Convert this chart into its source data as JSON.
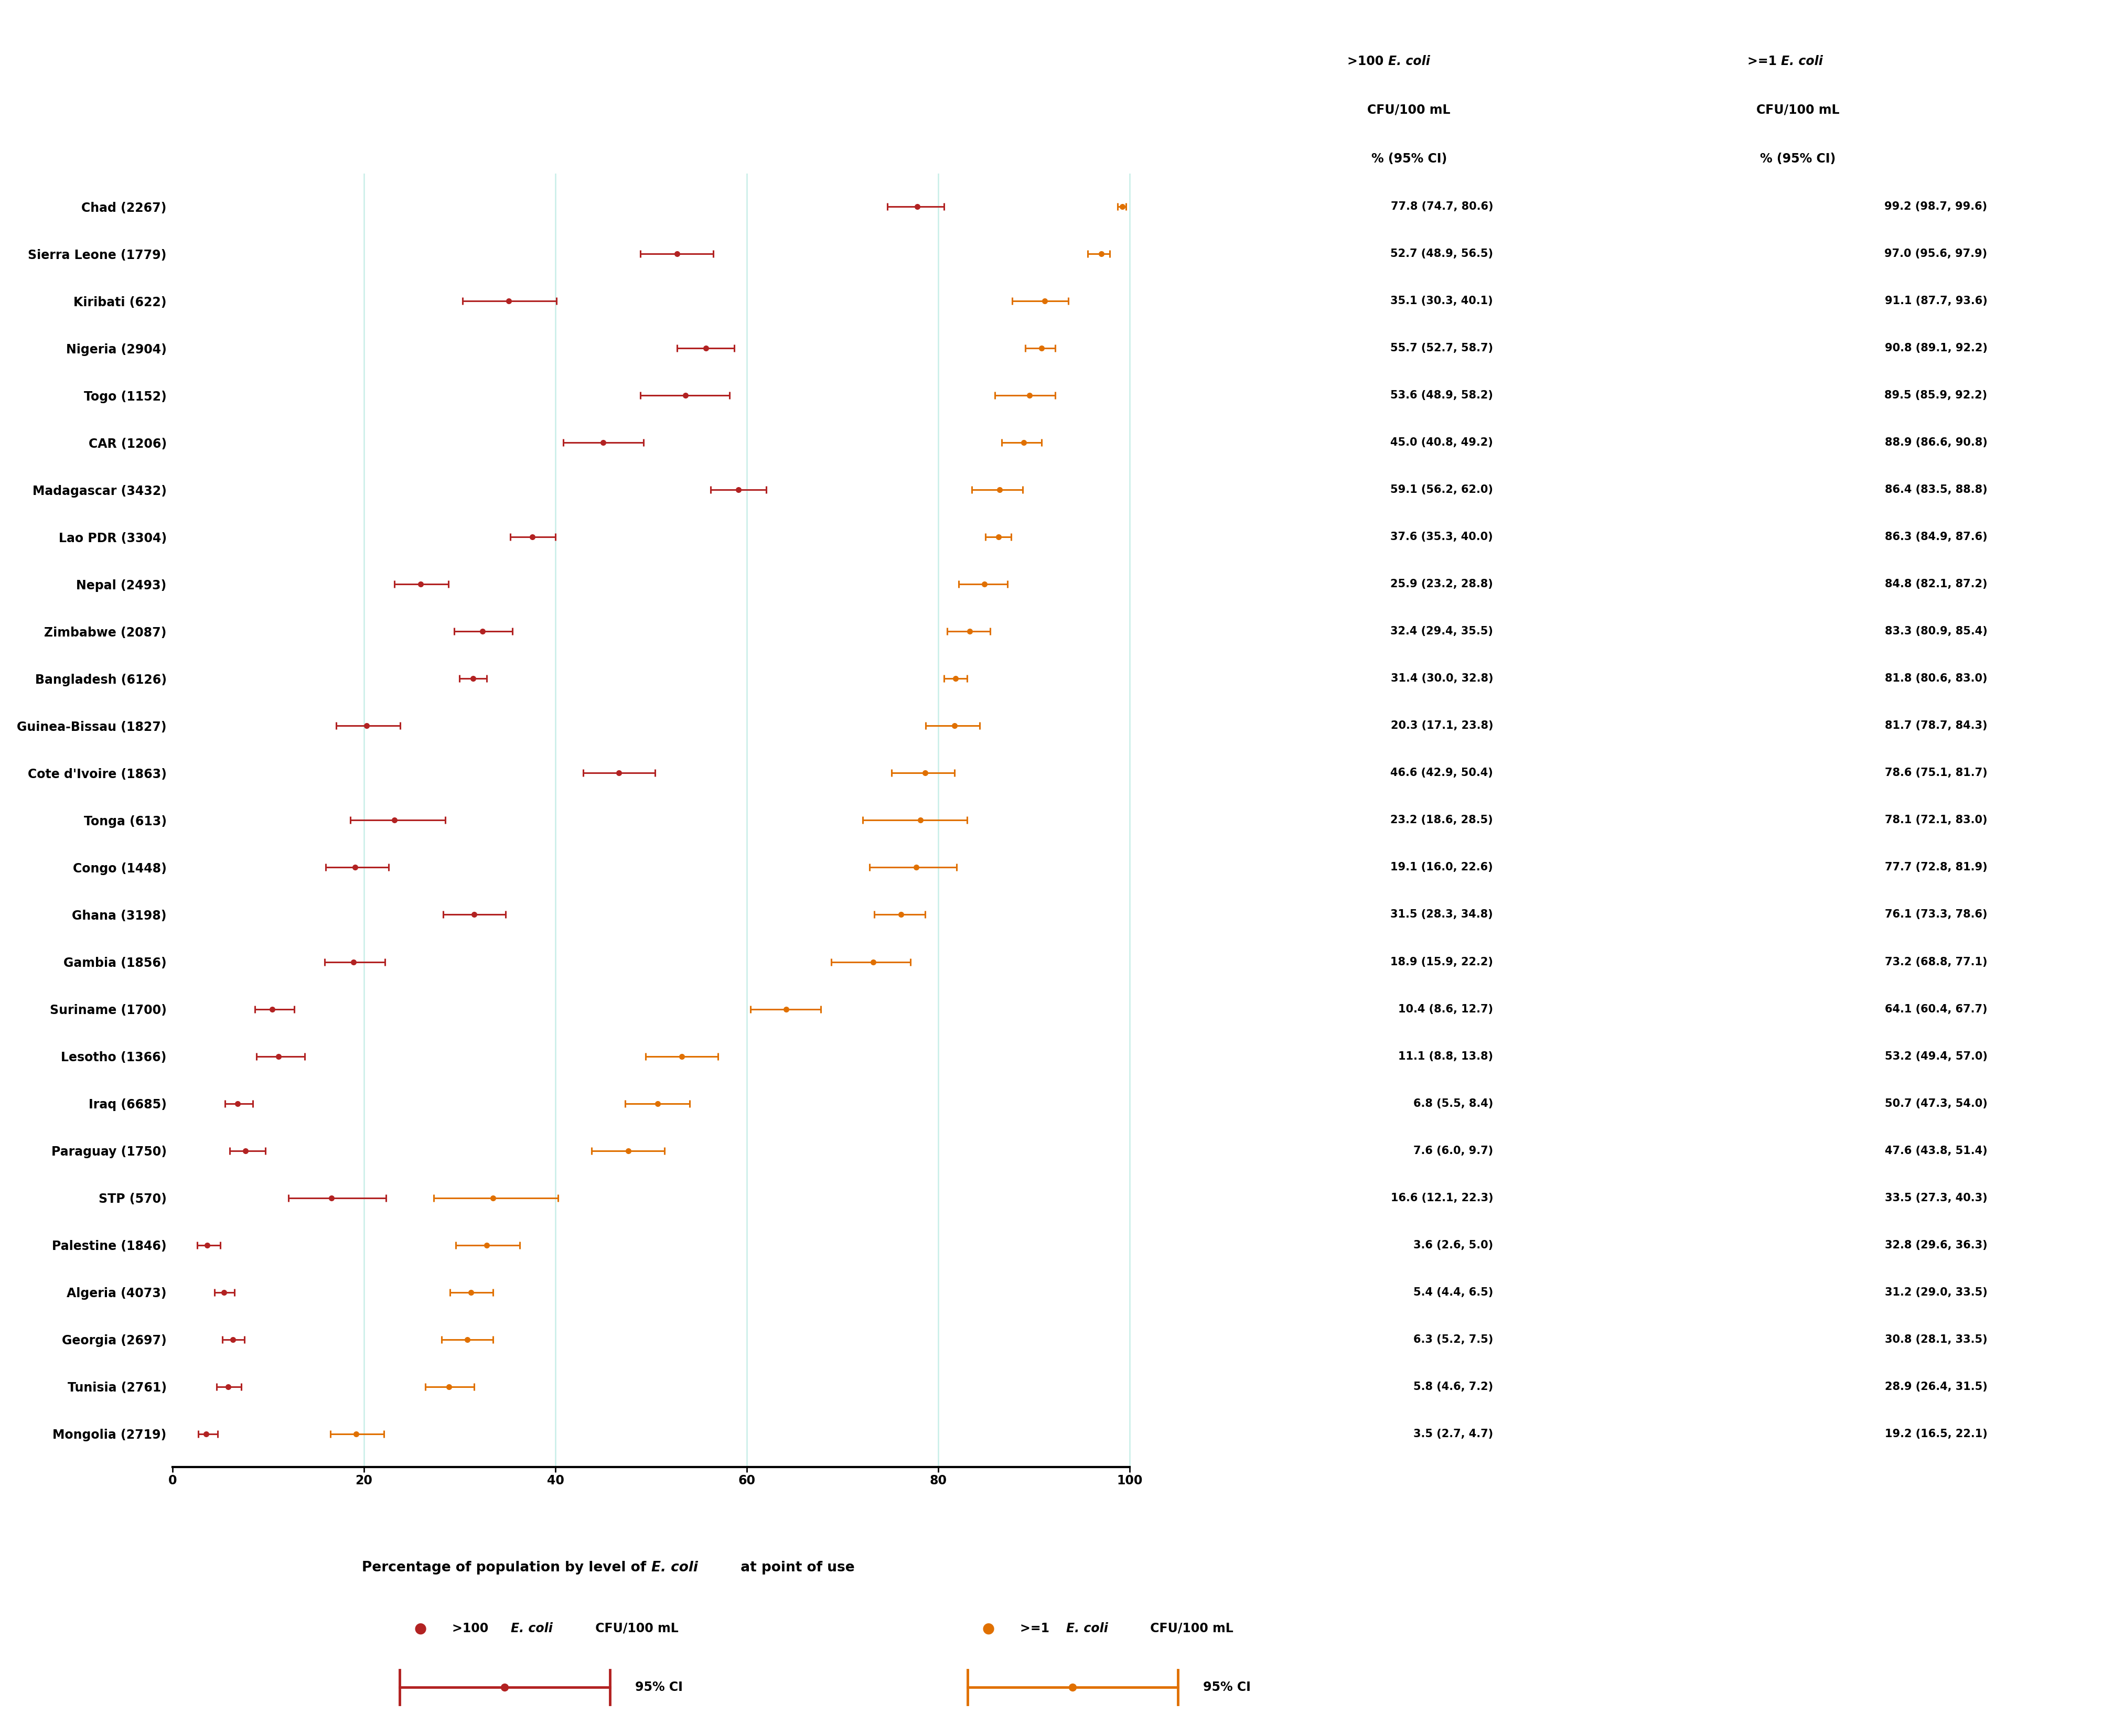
{
  "countries": [
    "Chad (2267)",
    "Sierra Leone (1779)",
    "Kiribati (622)",
    "Nigeria (2904)",
    "Togo (1152)",
    "CAR (1206)",
    "Madagascar (3432)",
    "Lao PDR (3304)",
    "Nepal (2493)",
    "Zimbabwe (2087)",
    "Bangladesh (6126)",
    "Guinea-Bissau (1827)",
    "Cote d'Ivoire (1863)",
    "Tonga (613)",
    "Congo (1448)",
    "Ghana (3198)",
    "Gambia (1856)",
    "Suriname (1700)",
    "Lesotho (1366)",
    "Iraq (6685)",
    "Paraguay (1750)",
    "STP (570)",
    "Palestine (1846)",
    "Algeria (4073)",
    "Georgia (2697)",
    "Tunisia (2761)",
    "Mongolia (2719)"
  ],
  "red_mean": [
    77.8,
    52.7,
    35.1,
    55.7,
    53.6,
    45.0,
    59.1,
    37.6,
    25.9,
    32.4,
    31.4,
    20.3,
    46.6,
    23.2,
    19.1,
    31.5,
    18.9,
    10.4,
    11.1,
    6.8,
    7.6,
    16.6,
    3.6,
    5.4,
    6.3,
    5.8,
    3.5
  ],
  "red_lo": [
    74.7,
    48.9,
    30.3,
    52.7,
    48.9,
    40.8,
    56.2,
    35.3,
    23.2,
    29.4,
    30.0,
    17.1,
    42.9,
    18.6,
    16.0,
    28.3,
    15.9,
    8.6,
    8.8,
    5.5,
    6.0,
    12.1,
    2.6,
    4.4,
    5.2,
    4.6,
    2.7
  ],
  "red_hi": [
    80.6,
    56.5,
    40.1,
    58.7,
    58.2,
    49.2,
    62.0,
    40.0,
    28.8,
    35.5,
    32.8,
    23.8,
    50.4,
    28.5,
    22.6,
    34.8,
    22.2,
    12.7,
    13.8,
    8.4,
    9.7,
    22.3,
    5.0,
    6.5,
    7.5,
    7.2,
    4.7
  ],
  "orange_mean": [
    99.2,
    97.0,
    91.1,
    90.8,
    89.5,
    88.9,
    86.4,
    86.3,
    84.8,
    83.3,
    81.8,
    81.7,
    78.6,
    78.1,
    77.7,
    76.1,
    73.2,
    64.1,
    53.2,
    50.7,
    47.6,
    33.5,
    32.8,
    31.2,
    30.8,
    28.9,
    19.2
  ],
  "orange_lo": [
    98.7,
    95.6,
    87.7,
    89.1,
    85.9,
    86.6,
    83.5,
    84.9,
    82.1,
    80.9,
    80.6,
    78.7,
    75.1,
    72.1,
    72.8,
    73.3,
    68.8,
    60.4,
    49.4,
    47.3,
    43.8,
    27.3,
    29.6,
    29.0,
    28.1,
    26.4,
    16.5
  ],
  "orange_hi": [
    99.6,
    97.9,
    93.6,
    92.2,
    92.2,
    90.8,
    88.8,
    87.6,
    87.2,
    85.4,
    83.0,
    84.3,
    81.7,
    83.0,
    81.9,
    78.6,
    77.1,
    67.7,
    57.0,
    54.0,
    51.4,
    40.3,
    36.3,
    33.5,
    33.5,
    31.5,
    22.1
  ],
  "red_label_col1": [
    "77.8 (74.7, 80.6)",
    "52.7 (48.9, 56.5)",
    "35.1 (30.3, 40.1)",
    "55.7 (52.7, 58.7)",
    "53.6 (48.9, 58.2)",
    "45.0 (40.8, 49.2)",
    "59.1 (56.2, 62.0)",
    "37.6 (35.3, 40.0)",
    "25.9 (23.2, 28.8)",
    "32.4 (29.4, 35.5)",
    "31.4 (30.0, 32.8)",
    "20.3 (17.1, 23.8)",
    "46.6 (42.9, 50.4)",
    "23.2 (18.6, 28.5)",
    "19.1 (16.0, 22.6)",
    "31.5 (28.3, 34.8)",
    "18.9 (15.9, 22.2)",
    "10.4 (8.6, 12.7)",
    "11.1 (8.8, 13.8)",
    "6.8 (5.5, 8.4)",
    "7.6 (6.0, 9.7)",
    "16.6 (12.1, 22.3)",
    "3.6 (2.6, 5.0)",
    "5.4 (4.4, 6.5)",
    "6.3 (5.2, 7.5)",
    "5.8 (4.6, 7.2)",
    "3.5 (2.7, 4.7)"
  ],
  "orange_label_col2": [
    "99.2 (98.7, 99.6)",
    "97.0 (95.6, 97.9)",
    "91.1 (87.7, 93.6)",
    "90.8 (89.1, 92.2)",
    "89.5 (85.9, 92.2)",
    "88.9 (86.6, 90.8)",
    "86.4 (83.5, 88.8)",
    "86.3 (84.9, 87.6)",
    "84.8 (82.1, 87.2)",
    "83.3 (80.9, 85.4)",
    "81.8 (80.6, 83.0)",
    "81.7 (78.7, 84.3)",
    "78.6 (75.1, 81.7)",
    "78.1 (72.1, 83.0)",
    "77.7 (72.8, 81.9)",
    "76.1 (73.3, 78.6)",
    "73.2 (68.8, 77.1)",
    "64.1 (60.4, 67.7)",
    "53.2 (49.4, 57.0)",
    "50.7 (47.3, 54.0)",
    "47.6 (43.8, 51.4)",
    "33.5 (27.3, 40.3)",
    "32.8 (29.6, 36.3)",
    "31.2 (29.0, 33.5)",
    "30.8 (28.1, 33.5)",
    "28.9 (26.4, 31.5)",
    "19.2 (16.5, 22.1)"
  ],
  "red_color": "#B22222",
  "orange_color": "#E07000",
  "gridline_color": "#C8EEE8",
  "marker_size": 7,
  "line_width": 2.2,
  "cap_size": 5,
  "xlabel": "Percentage of population by level of ",
  "xlabel_ecoli": "E. coli",
  "xlabel_suffix": " at point of use",
  "col1_header_line1": ">100 ",
  "col1_header_ecoli": "E. coli",
  "col1_header_line2": "CFU/100 mL",
  "col1_header_line3": "% (95% CI)",
  "col2_header_line1": ">=1 ",
  "col2_header_ecoli": "E. coli",
  "col2_header_line2": "CFU/100 mL",
  "col2_header_line3": "% (95% CI)",
  "xlim": [
    0,
    105
  ],
  "xticks": [
    0,
    20,
    40,
    60,
    80,
    100
  ],
  "background_color": "#FFFFFF"
}
